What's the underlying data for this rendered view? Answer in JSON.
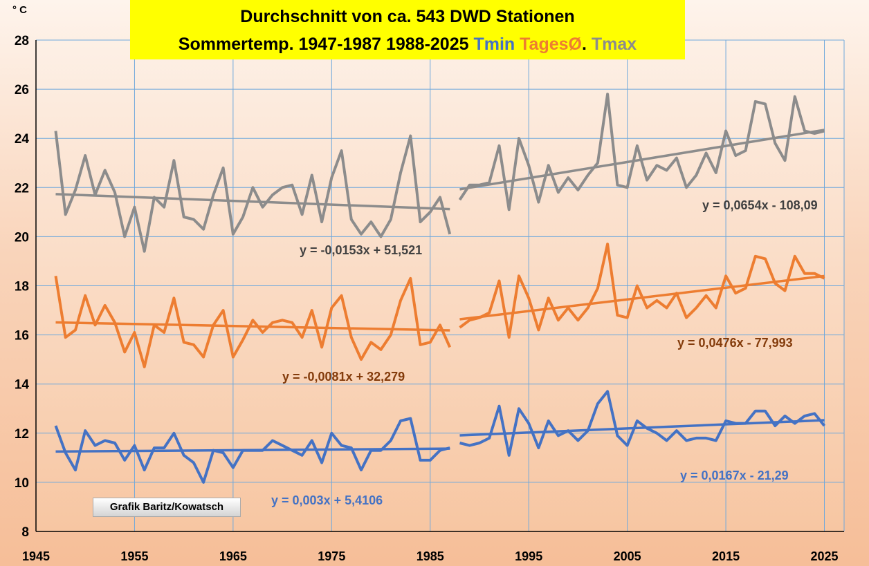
{
  "title": {
    "line1": "Durchschnitt von ca. 543 DWD Stationen",
    "line2_prefix": "Sommertemp. 1947-1987  1988-2025  ",
    "tmin_label": "Tmin",
    "mean_label": "TagesØ",
    "dot": ". ",
    "tmax_label": "Tmax"
  },
  "credit": "Grafik Baritz/Kowatsch",
  "unit_label": "° C",
  "colors": {
    "tmin": "#4472C4",
    "mean": "#ED7D31",
    "tmax": "#8C8C8C",
    "mean_eq": "#843C0C",
    "tmax_eq": "#404040",
    "title_bg": "#FFFF00"
  },
  "chart_data": {
    "type": "line",
    "xlim": [
      1945,
      2027
    ],
    "ylim": [
      8,
      28
    ],
    "x_ticks": [
      1945,
      1955,
      1965,
      1975,
      1985,
      1995,
      2005,
      2015,
      2025
    ],
    "y_ticks": [
      8,
      10,
      12,
      14,
      16,
      18,
      20,
      22,
      24,
      26,
      28
    ],
    "segments": [
      {
        "years": [
          1947,
          1948,
          1949,
          1950,
          1951,
          1952,
          1953,
          1954,
          1955,
          1956,
          1957,
          1958,
          1959,
          1960,
          1961,
          1962,
          1963,
          1964,
          1965,
          1966,
          1967,
          1968,
          1969,
          1970,
          1971,
          1972,
          1973,
          1974,
          1975,
          1976,
          1977,
          1978,
          1979,
          1980,
          1981,
          1982,
          1983,
          1984,
          1985,
          1986,
          1987
        ],
        "series": [
          {
            "name": "Tmax",
            "values": [
              24.3,
              20.9,
              21.9,
              23.3,
              21.7,
              22.7,
              21.8,
              20.0,
              21.2,
              19.4,
              21.6,
              21.2,
              23.1,
              20.8,
              20.7,
              20.3,
              21.7,
              22.8,
              20.1,
              20.8,
              22.0,
              21.2,
              21.7,
              22.0,
              22.1,
              20.9,
              22.5,
              20.6,
              22.4,
              23.5,
              20.7,
              20.1,
              20.6,
              20.0,
              20.7,
              22.6,
              24.1,
              20.6,
              21.0,
              21.6,
              20.1
            ]
          },
          {
            "name": "TagesØ",
            "values": [
              18.4,
              15.9,
              16.2,
              17.6,
              16.4,
              17.2,
              16.5,
              15.3,
              16.1,
              14.7,
              16.4,
              16.1,
              17.5,
              15.7,
              15.6,
              15.1,
              16.4,
              17.0,
              15.1,
              15.8,
              16.6,
              16.1,
              16.5,
              16.6,
              16.5,
              15.9,
              17.0,
              15.5,
              17.1,
              17.6,
              15.9,
              15.0,
              15.7,
              15.4,
              16.0,
              17.4,
              18.3,
              15.6,
              15.7,
              16.4,
              15.5
            ]
          },
          {
            "name": "Tmin",
            "values": [
              12.3,
              11.2,
              10.5,
              12.1,
              11.5,
              11.7,
              11.6,
              10.9,
              11.5,
              10.5,
              11.4,
              11.4,
              12.0,
              11.1,
              10.8,
              10.0,
              11.3,
              11.2,
              10.6,
              11.3,
              11.3,
              11.3,
              11.7,
              11.5,
              11.3,
              11.1,
              11.7,
              10.8,
              12.0,
              11.5,
              11.4,
              10.5,
              11.3,
              11.3,
              11.7,
              12.5,
              12.6,
              10.9,
              10.9,
              11.3,
              11.4
            ]
          }
        ],
        "trends": [
          {
            "name": "Tmax",
            "equation": "y = -0,0153x + 51,521",
            "slope": -0.0153,
            "intercept": 51.521
          },
          {
            "name": "TagesØ",
            "equation": "y = -0,0081x + 32,279",
            "slope": -0.0081,
            "intercept": 32.279
          },
          {
            "name": "Tmin",
            "equation": "y = 0,003x + 5,4106",
            "slope": 0.003,
            "intercept": 5.4106
          }
        ]
      },
      {
        "years": [
          1988,
          1989,
          1990,
          1991,
          1992,
          1993,
          1994,
          1995,
          1996,
          1997,
          1998,
          1999,
          2000,
          2001,
          2002,
          2003,
          2004,
          2005,
          2006,
          2007,
          2008,
          2009,
          2010,
          2011,
          2012,
          2013,
          2014,
          2015,
          2016,
          2017,
          2018,
          2019,
          2020,
          2021,
          2022,
          2023,
          2024,
          2025
        ],
        "series": [
          {
            "name": "Tmax",
            "values": [
              21.5,
              22.1,
              22.1,
              22.2,
              23.7,
              21.1,
              24.0,
              22.9,
              21.4,
              22.9,
              21.8,
              22.4,
              21.9,
              22.5,
              23.0,
              25.8,
              22.1,
              22.0,
              23.7,
              22.3,
              22.9,
              22.7,
              23.2,
              22.0,
              22.5,
              23.4,
              22.6,
              24.3,
              23.3,
              23.5,
              25.5,
              25.4,
              23.8,
              23.1,
              25.7,
              24.3,
              24.2,
              24.3
            ]
          },
          {
            "name": "TagesØ",
            "values": [
              16.3,
              16.6,
              16.7,
              16.9,
              18.2,
              15.9,
              18.4,
              17.5,
              16.2,
              17.5,
              16.6,
              17.1,
              16.6,
              17.1,
              17.9,
              19.7,
              16.8,
              16.7,
              18.0,
              17.1,
              17.4,
              17.1,
              17.7,
              16.7,
              17.1,
              17.6,
              17.1,
              18.4,
              17.7,
              17.9,
              19.2,
              19.1,
              18.1,
              17.8,
              19.2,
              18.5,
              18.5,
              18.3
            ]
          },
          {
            "name": "Tmin",
            "values": [
              11.6,
              11.5,
              11.6,
              11.8,
              13.1,
              11.1,
              13.0,
              12.4,
              11.4,
              12.5,
              11.9,
              12.1,
              11.7,
              12.1,
              13.2,
              13.7,
              11.9,
              11.5,
              12.5,
              12.2,
              12.0,
              11.7,
              12.1,
              11.7,
              11.8,
              11.8,
              11.7,
              12.5,
              12.4,
              12.4,
              12.9,
              12.9,
              12.3,
              12.7,
              12.4,
              12.7,
              12.8,
              12.3
            ]
          }
        ],
        "trends": [
          {
            "name": "Tmax",
            "equation": "y = 0,0654x - 108,09",
            "slope": 0.0654,
            "intercept": -108.09
          },
          {
            "name": "TagesØ",
            "equation": "y = 0,0476x - 77,993",
            "slope": 0.0476,
            "intercept": -77.993
          },
          {
            "name": "Tmin",
            "equation": "y = 0,0167x - 21,29",
            "slope": 0.0167,
            "intercept": -21.29
          }
        ]
      }
    ]
  }
}
